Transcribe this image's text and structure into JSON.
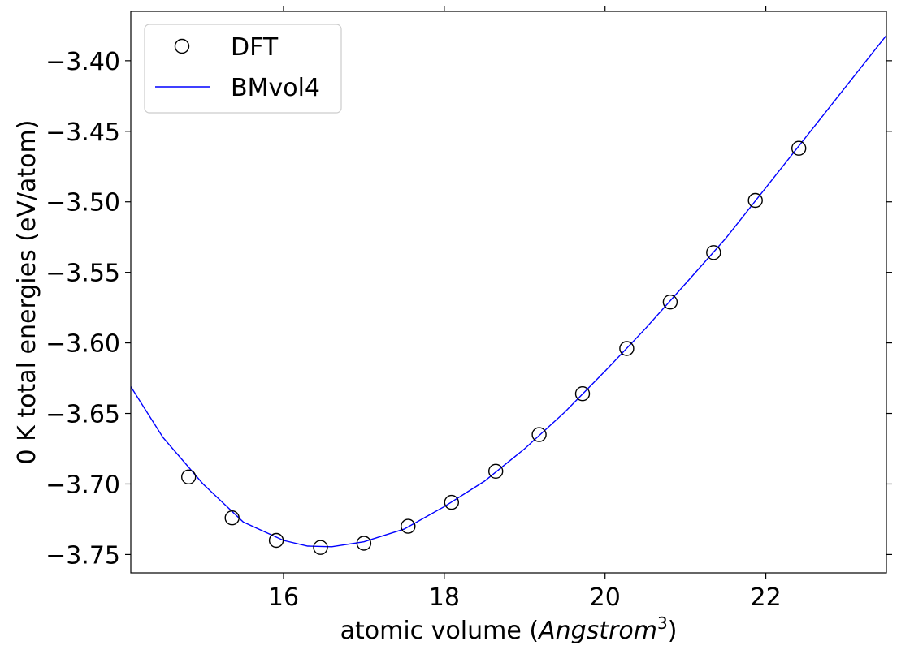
{
  "chart_data": {
    "type": "scatter",
    "xlabel": "atomic volume (",
    "xlabel_italic": "Angstrom",
    "xlabel_sup": "3",
    "xlabel_close": ")",
    "ylabel": "0 K total energies (eV/atom)",
    "xlim": [
      14.1,
      23.5
    ],
    "ylim": [
      -3.763,
      -3.365
    ],
    "xticks": [
      16,
      18,
      20,
      22
    ],
    "xtick_labels": [
      "16",
      "18",
      "20",
      "22"
    ],
    "yticks": [
      -3.75,
      -3.7,
      -3.65,
      -3.6,
      -3.55,
      -3.5,
      -3.45,
      -3.4
    ],
    "ytick_labels": [
      "−3.75",
      "−3.70",
      "−3.65",
      "−3.60",
      "−3.55",
      "−3.50",
      "−3.45",
      "−3.40"
    ],
    "grid": false,
    "legend": {
      "placement": "top-left",
      "entries": [
        "DFT",
        "BMvol4"
      ]
    },
    "series": [
      {
        "name": "DFT",
        "style": "open-circle",
        "color": "#000000",
        "x": [
          14.82,
          15.36,
          15.91,
          16.46,
          17.0,
          17.55,
          18.09,
          18.64,
          19.18,
          19.72,
          20.27,
          20.81,
          21.35,
          21.87,
          22.41
        ],
        "y": [
          -3.695,
          -3.724,
          -3.74,
          -3.745,
          -3.742,
          -3.73,
          -3.713,
          -3.691,
          -3.665,
          -3.636,
          -3.604,
          -3.571,
          -3.536,
          -3.499,
          -3.462
        ]
      },
      {
        "name": "BMvol4",
        "style": "line",
        "color": "#0000ff",
        "x": [
          14.1,
          14.5,
          15.0,
          15.5,
          16.0,
          16.3,
          16.6,
          17.0,
          17.5,
          18.0,
          18.5,
          19.0,
          19.5,
          20.0,
          20.5,
          21.0,
          21.5,
          22.0,
          22.5,
          23.0,
          23.5
        ],
        "y": [
          -3.631,
          -3.667,
          -3.7,
          -3.727,
          -3.74,
          -3.744,
          -3.7445,
          -3.741,
          -3.732,
          -3.716,
          -3.698,
          -3.675,
          -3.649,
          -3.62,
          -3.59,
          -3.558,
          -3.526,
          -3.49,
          -3.454,
          -3.418,
          -3.382
        ]
      }
    ]
  }
}
